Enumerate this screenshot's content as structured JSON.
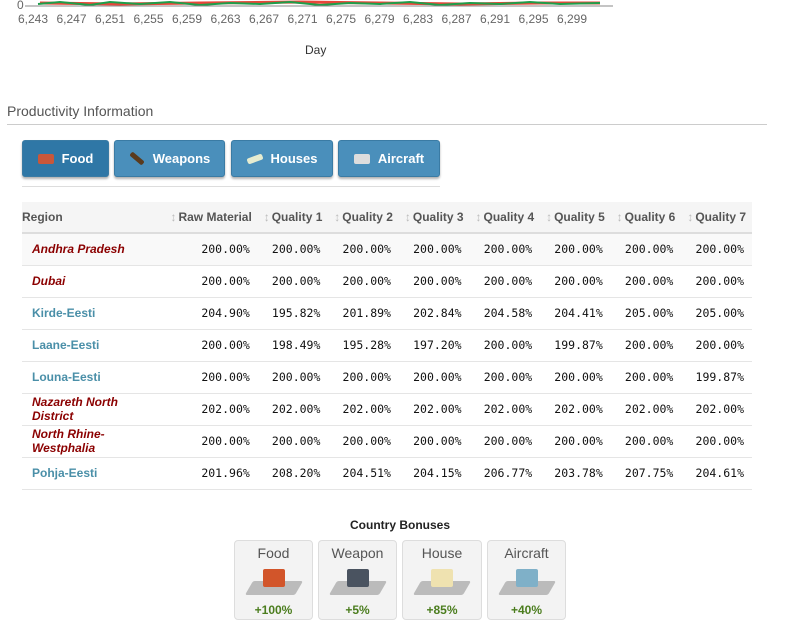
{
  "chart": {
    "y_tick": "0",
    "x_ticks": [
      "6,243",
      "6,247",
      "6,251",
      "6,255",
      "6,259",
      "6,263",
      "6,267",
      "6,271",
      "6,275",
      "6,279",
      "6,283",
      "6,287",
      "6,291",
      "6,295",
      "6,299"
    ],
    "xlabel": "Day",
    "series_colors": [
      "#e8463a",
      "#1e9e4a"
    ]
  },
  "section_title": "Productivity Information",
  "tabs": [
    {
      "label": "Food",
      "active": true,
      "icon": "food-icon"
    },
    {
      "label": "Weapons",
      "active": false,
      "icon": "weapons-icon"
    },
    {
      "label": "Houses",
      "active": false,
      "icon": "houses-icon"
    },
    {
      "label": "Aircraft",
      "active": false,
      "icon": "aircraft-icon"
    }
  ],
  "table": {
    "headers": [
      "Region",
      "Raw Material",
      "Quality 1",
      "Quality 2",
      "Quality 3",
      "Quality 4",
      "Quality 5",
      "Quality 6",
      "Quality 7"
    ],
    "rows": [
      {
        "region": "Andhra Pradesh",
        "style": "italic",
        "values": [
          "200.00%",
          "200.00%",
          "200.00%",
          "200.00%",
          "200.00%",
          "200.00%",
          "200.00%",
          "200.00%"
        ]
      },
      {
        "region": "Dubai",
        "style": "italic",
        "values": [
          "200.00%",
          "200.00%",
          "200.00%",
          "200.00%",
          "200.00%",
          "200.00%",
          "200.00%",
          "200.00%"
        ]
      },
      {
        "region": "Kirde-Eesti",
        "style": "normal",
        "values": [
          "204.90%",
          "195.82%",
          "201.89%",
          "202.84%",
          "204.58%",
          "204.41%",
          "205.00%",
          "205.00%"
        ]
      },
      {
        "region": "Laane-Eesti",
        "style": "normal",
        "values": [
          "200.00%",
          "198.49%",
          "195.28%",
          "197.20%",
          "200.00%",
          "199.87%",
          "200.00%",
          "200.00%"
        ]
      },
      {
        "region": "Louna-Eesti",
        "style": "normal",
        "values": [
          "200.00%",
          "200.00%",
          "200.00%",
          "200.00%",
          "200.00%",
          "200.00%",
          "200.00%",
          "199.87%"
        ]
      },
      {
        "region": "Nazareth North District",
        "style": "italic",
        "values": [
          "202.00%",
          "202.00%",
          "202.00%",
          "202.00%",
          "202.00%",
          "202.00%",
          "202.00%",
          "202.00%"
        ]
      },
      {
        "region": "North Rhine-Westphalia",
        "style": "italic",
        "values": [
          "200.00%",
          "200.00%",
          "200.00%",
          "200.00%",
          "200.00%",
          "200.00%",
          "200.00%",
          "200.00%"
        ]
      },
      {
        "region": "Pohja-Eesti",
        "style": "normal",
        "values": [
          "201.96%",
          "208.20%",
          "204.51%",
          "204.15%",
          "206.77%",
          "203.78%",
          "207.75%",
          "204.61%"
        ]
      }
    ]
  },
  "bonuses": {
    "title": "Country Bonuses",
    "items": [
      {
        "label": "Food",
        "value": "+100%",
        "color": "#d2552a"
      },
      {
        "label": "Weapon",
        "value": "+5%",
        "color": "#4a5360"
      },
      {
        "label": "House",
        "value": "+85%",
        "color": "#efe2b0"
      },
      {
        "label": "Aircraft",
        "value": "+40%",
        "color": "#7fb0c8"
      }
    ]
  }
}
